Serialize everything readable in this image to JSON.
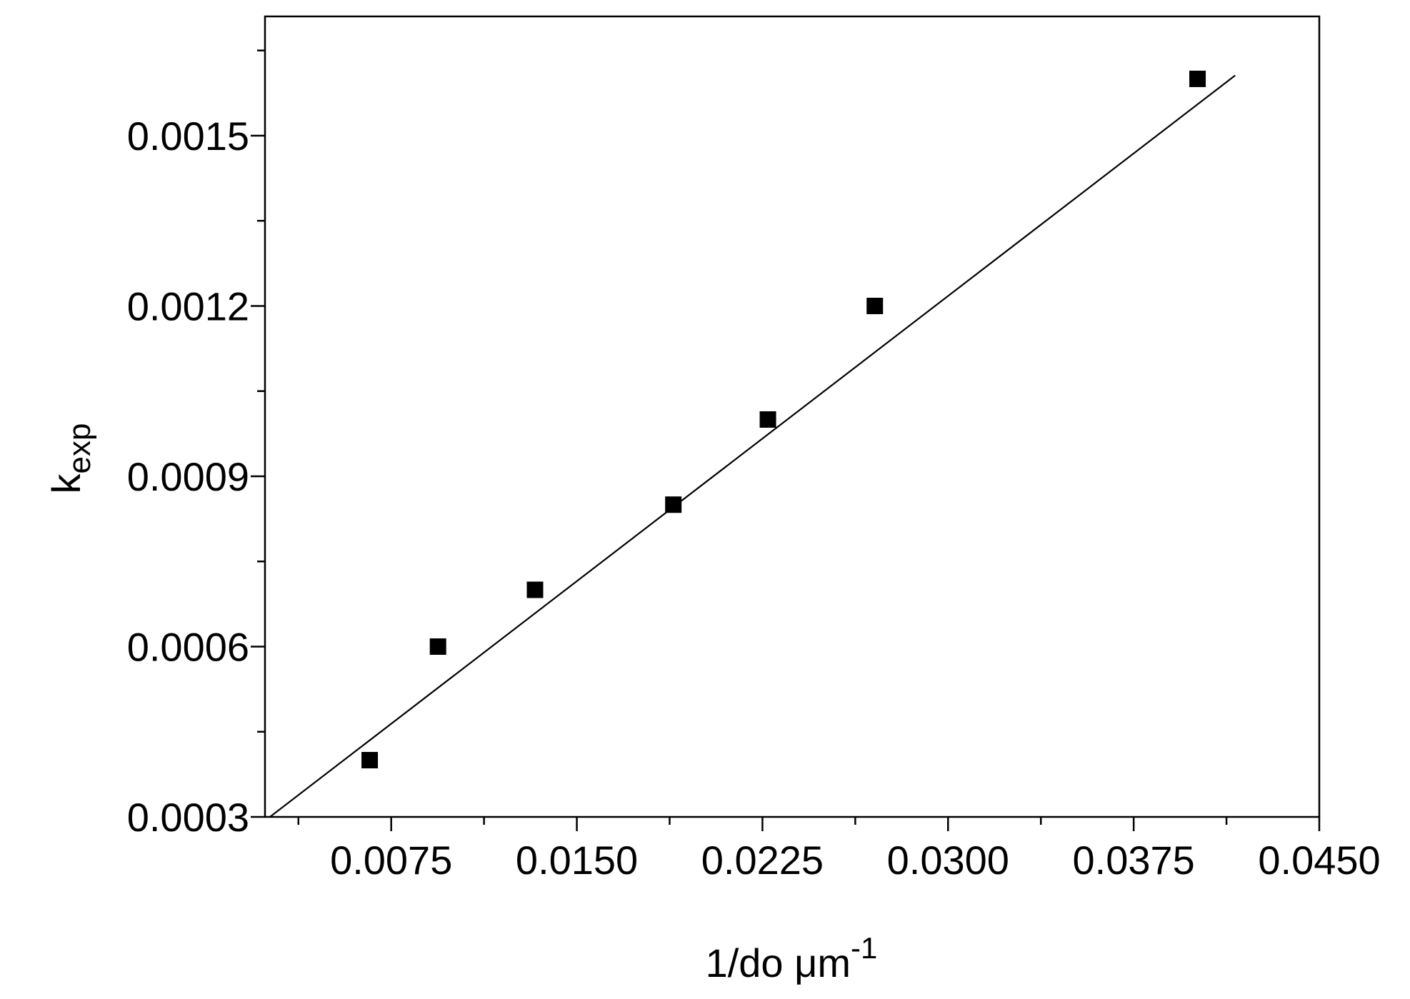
{
  "chart_data": {
    "type": "scatter",
    "xlabel": "1/do μm",
    "xlabel_superscript": "-1",
    "ylabel": "k",
    "ylabel_subscript": "exp",
    "xlim": [
      0.0024,
      0.045
    ],
    "ylim": [
      0.0003,
      0.00171
    ],
    "xticks": [
      0.0075,
      {
        "value": 0.015,
        "label": "0.0150"
      },
      0.0225,
      {
        "value": 0.03,
        "label": "0.0300"
      },
      0.0375,
      {
        "value": 0.045,
        "label": "0.0450"
      }
    ],
    "xminorticks": [
      0.00375,
      0.01125,
      0.01875,
      0.02625,
      0.03375,
      0.04125
    ],
    "yticks": [
      0.0003,
      0.0006,
      0.0009,
      0.0012,
      0.0015
    ],
    "yminorticks": [
      0.00045,
      0.00075,
      0.00105,
      0.00135,
      0.00165
    ],
    "series": [
      {
        "kind": "scatter",
        "marker": "square",
        "color": "#000000",
        "x": [
          0.00663,
          0.00939,
          0.01331,
          0.0189,
          0.02272,
          0.02704,
          0.04008
        ],
        "values": [
          0.0004,
          0.0006,
          0.0007,
          0.00085,
          0.001,
          0.0012,
          0.0016
        ]
      },
      {
        "kind": "line",
        "color": "#000000",
        "x": [
          0.0026,
          0.0416
        ],
        "values": [
          0.0003,
          0.001606
        ]
      }
    ]
  }
}
